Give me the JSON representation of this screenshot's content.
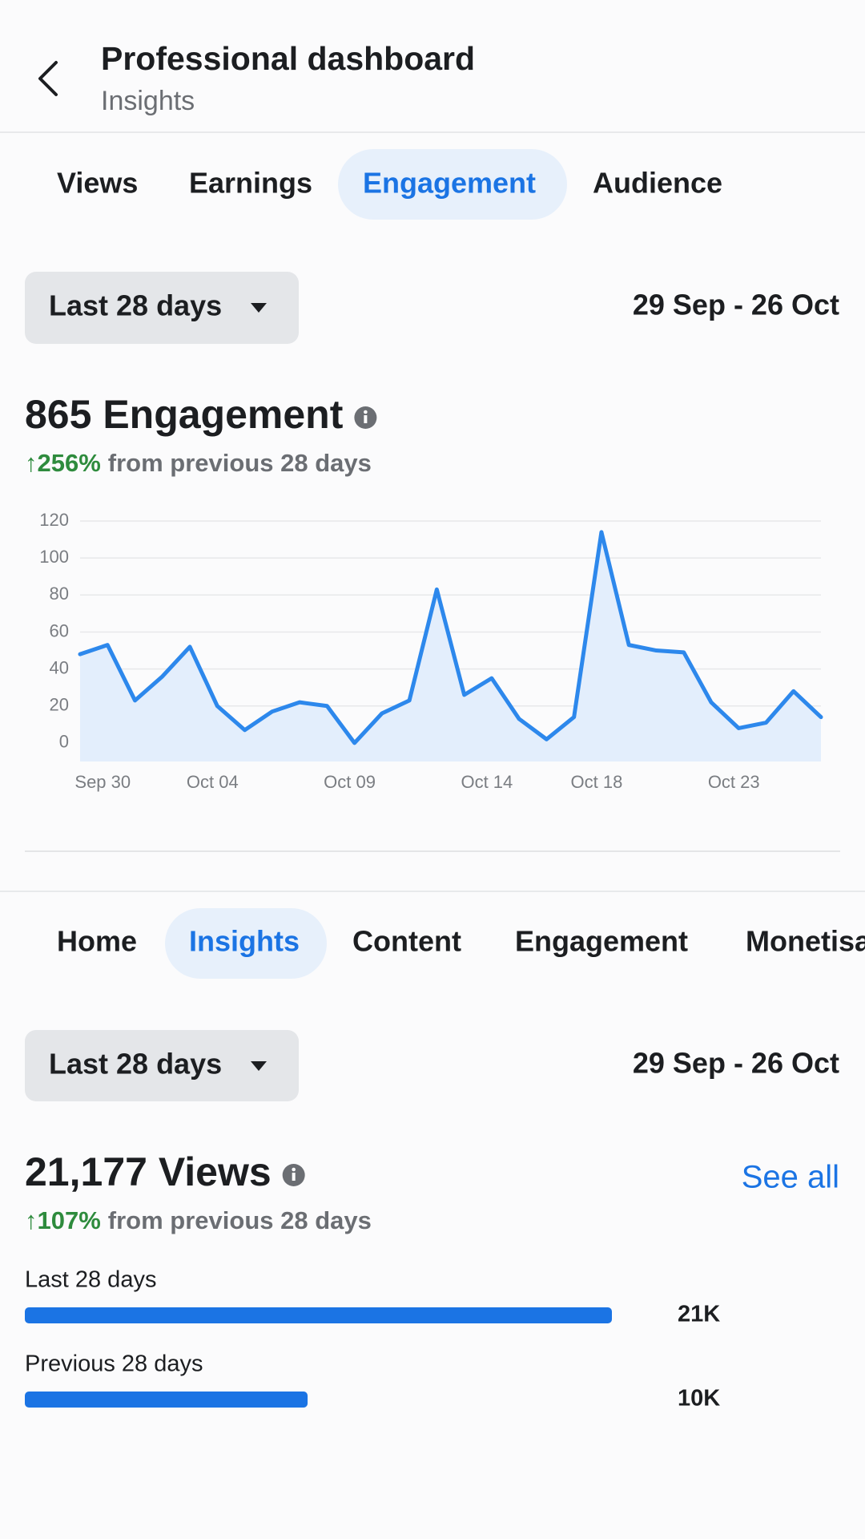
{
  "header": {
    "title": "Professional dashboard",
    "subtitle": "Insights"
  },
  "top_tabs": [
    "Views",
    "Earnings",
    "Engagement",
    "Audience"
  ],
  "engagement": {
    "range_button": "Last 28 days",
    "date_range": "29 Sep - 26 Oct",
    "headline": "865 Engagement",
    "change": "↑256%",
    "change_note": "from previous 28 days"
  },
  "nav_tabs": [
    "Home",
    "Insights",
    "Content",
    "Engagement",
    "Monetisation"
  ],
  "views": {
    "range_button": "Last 28 days",
    "date_range": "29 Sep - 26 Oct",
    "headline": "21,177 Views",
    "see_all": "See all",
    "change": "↑107%",
    "change_note": "from previous 28 days"
  },
  "chart_data": [
    {
      "type": "line",
      "categories": [
        null,
        "Sep 30",
        null,
        null,
        null,
        "Oct 04",
        null,
        null,
        null,
        null,
        "Oct 09",
        null,
        null,
        null,
        null,
        "Oct 14",
        null,
        null,
        null,
        "Oct 18",
        null,
        null,
        null,
        null,
        "Oct 23",
        null,
        null,
        null
      ],
      "values": [
        48,
        53,
        23,
        36,
        52,
        20,
        7,
        17,
        22,
        20,
        0,
        16,
        23,
        83,
        26,
        35,
        13,
        2,
        14,
        114,
        53,
        50,
        49,
        22,
        8,
        11,
        28,
        14
      ],
      "color": "#2d88ec",
      "fill_color": "#e3eefc",
      "ylim": [
        -10,
        120
      ],
      "yticks": [
        0,
        20,
        40,
        60,
        80,
        100,
        120
      ],
      "grid": true
    },
    {
      "type": "hbar",
      "categories": [
        "Last 28 days",
        "Previous 28 days"
      ],
      "values": [
        21177,
        10200
      ],
      "value_labels": [
        "21K",
        "10K"
      ],
      "color": "#1b74e4",
      "xlim": [
        0,
        21177
      ]
    }
  ]
}
